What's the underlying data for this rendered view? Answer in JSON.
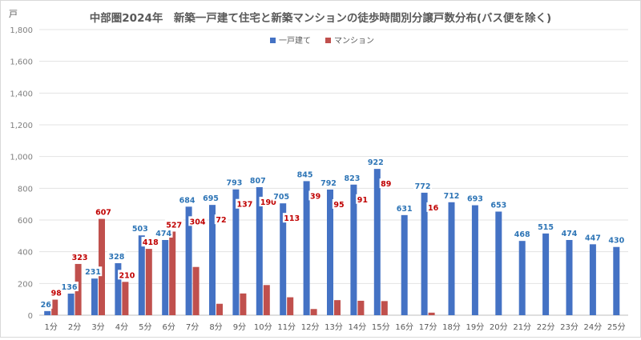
{
  "chart_data": {
    "type": "bar",
    "title": "中部圏2024年　新築一戸建て住宅と新築マンションの徒歩時間別分譲戸数分布(バス便を除く)",
    "ylabel": "戸",
    "xlabel": "",
    "ylim": [
      0,
      1800
    ],
    "yticks": [
      "0",
      "200",
      "400",
      "600",
      "800",
      "1,000",
      "1,200",
      "1,400",
      "1,600",
      "1,800"
    ],
    "ytick_values": [
      0,
      200,
      400,
      600,
      800,
      1000,
      1200,
      1400,
      1600,
      1800
    ],
    "grid": true,
    "legend_position": "top-center",
    "categories": [
      "1分",
      "2分",
      "3分",
      "4分",
      "5分",
      "6分",
      "7分",
      "8分",
      "9分",
      "10分",
      "11分",
      "12分",
      "13分",
      "14分",
      "15分",
      "16分",
      "17分",
      "18分",
      "19分",
      "20分",
      "21分",
      "22分",
      "23分",
      "24分",
      "25分"
    ],
    "series": [
      {
        "name": "一戸建て",
        "color": "#4472c4",
        "label_color": "#2e75b6",
        "values": [
          26,
          136,
          231,
          328,
          503,
          474,
          684,
          695,
          793,
          807,
          705,
          845,
          792,
          823,
          922,
          631,
          772,
          712,
          693,
          653,
          468,
          515,
          474,
          447,
          430
        ]
      },
      {
        "name": "マンション",
        "color": "#c0504d",
        "label_color": "#c00000",
        "values": [
          98,
          323,
          607,
          210,
          418,
          527,
          304,
          72,
          137,
          190,
          113,
          39,
          95,
          91,
          89,
          null,
          16,
          null,
          null,
          null,
          null,
          null,
          null,
          null,
          null
        ]
      }
    ]
  }
}
